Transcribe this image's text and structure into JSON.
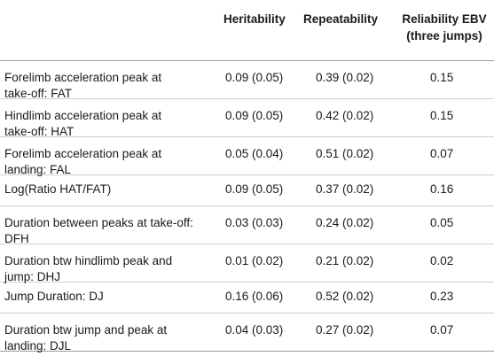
{
  "headers": {
    "heritability": "Heritability",
    "repeatability": "Repeatability",
    "reliability_line1": "Reliability EBV",
    "reliability_line2": "(three jumps)"
  },
  "rows": [
    {
      "name_line1": "Forelimb acceleration peak at",
      "name_line2": "take-off: FAT",
      "heritability": "0.09 (0.05)",
      "repeatability": "0.39 (0.02)",
      "reliability": "0.15"
    },
    {
      "name_line1": "Hindlimb acceleration peak at",
      "name_line2": "take-off: HAT",
      "heritability": "0.09 (0.05)",
      "repeatability": "0.42 (0.02)",
      "reliability": "0.15"
    },
    {
      "name_line1": "Forelimb acceleration peak at",
      "name_line2": "landing: FAL",
      "heritability": "0.05 (0.04)",
      "repeatability": "0.51 (0.02)",
      "reliability": "0.07"
    },
    {
      "name_line1": "Log(Ratio HAT/FAT)",
      "name_line2": "",
      "heritability": "0.09 (0.05)",
      "repeatability": "0.37 (0.02)",
      "reliability": "0.16"
    },
    {
      "name_line1": "Duration between peaks at take-off:",
      "name_line2": "DFH",
      "heritability": "0.03 (0.03)",
      "repeatability": "0.24 (0.02)",
      "reliability": "0.05"
    },
    {
      "name_line1": "Duration btw hindlimb peak and",
      "name_line2": "jump: DHJ",
      "heritability": "0.01 (0.02)",
      "repeatability": "0.21 (0.02)",
      "reliability": "0.02"
    },
    {
      "name_line1": "Jump Duration: DJ",
      "name_line2": "",
      "heritability": "0.16 (0.06)",
      "repeatability": "0.52 (0.02)",
      "reliability": "0.23"
    },
    {
      "name_line1": "Duration btw jump and peak at",
      "name_line2": "landing: DJL",
      "heritability": "0.04 (0.03)",
      "repeatability": "0.27 (0.02)",
      "reliability": "0.07"
    }
  ]
}
